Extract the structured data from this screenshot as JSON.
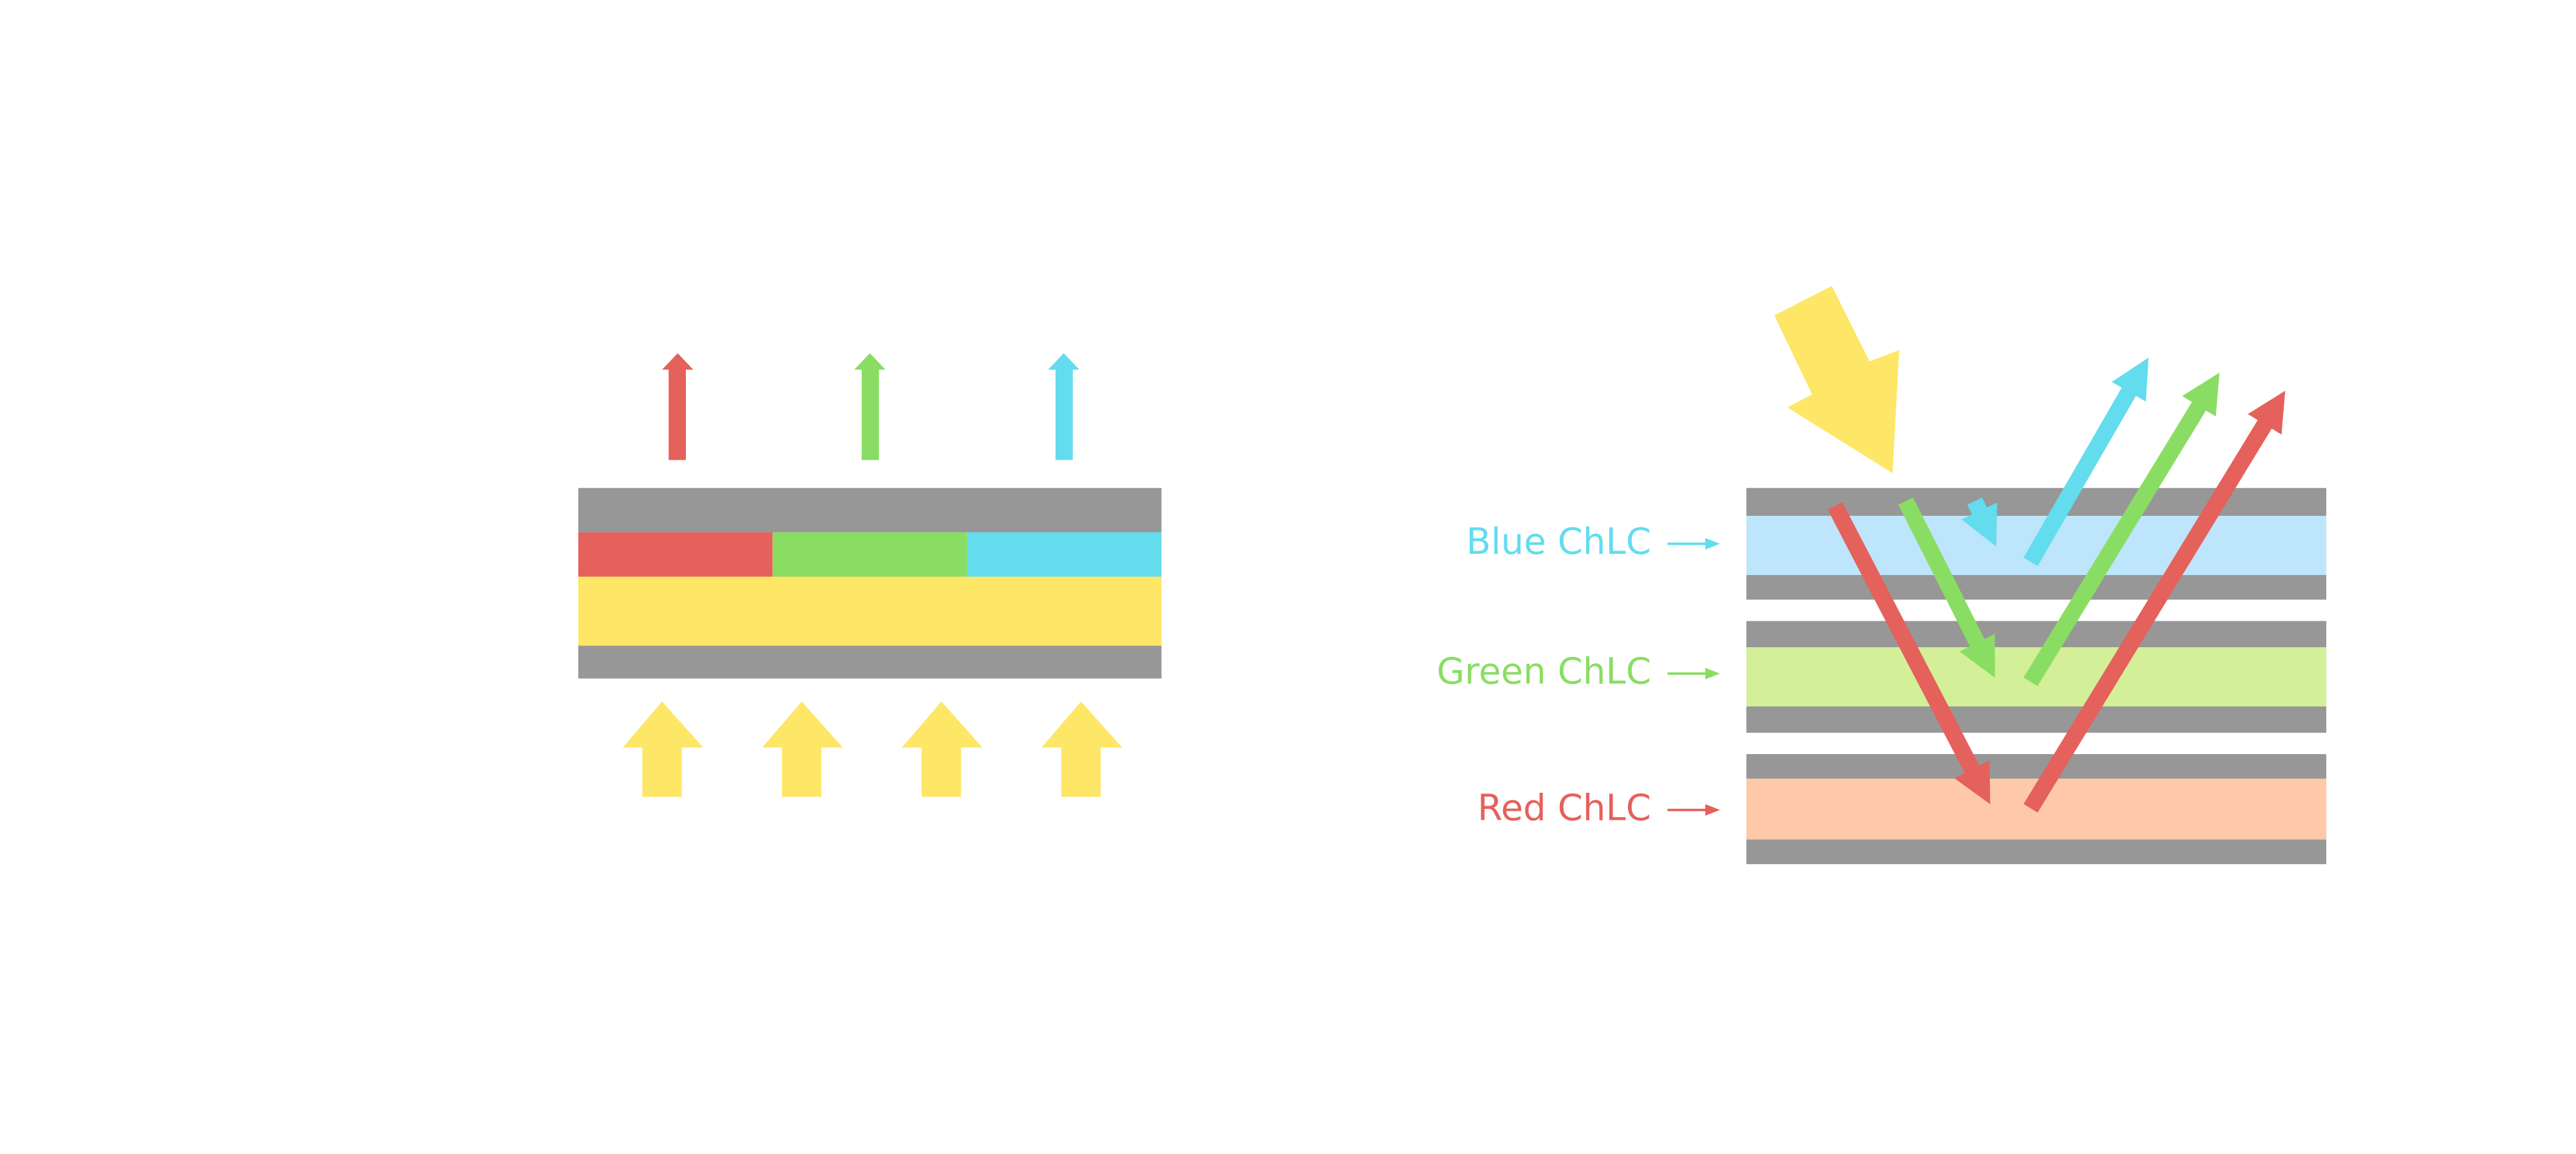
{
  "colors": {
    "red": "#E5615B",
    "green": "#8ADD63",
    "blue": "#63DCEE",
    "yellow": "#FEE667",
    "gray": "#979797",
    "blue_layer": "#BDE5FB",
    "green_layer": "#D3EF98",
    "red_layer": "#FDC9A9"
  },
  "right_diagram": {
    "labels": {
      "blue": "Blue ChLC",
      "green": "Green ChLC",
      "red": "Red ChLC"
    }
  }
}
